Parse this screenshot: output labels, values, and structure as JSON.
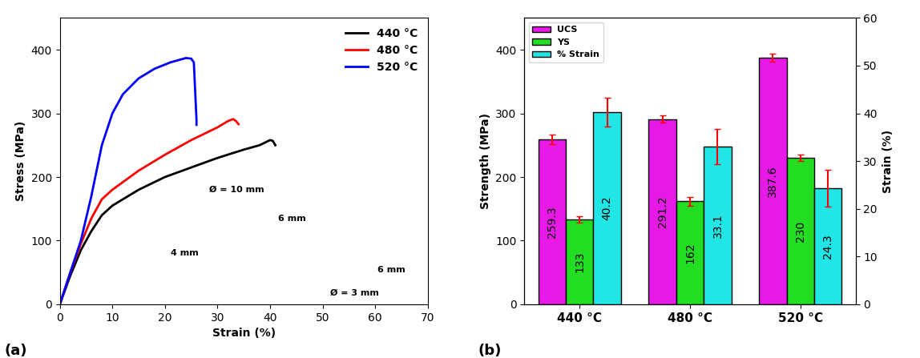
{
  "chart_data": [
    {
      "type": "line",
      "title": "(a)",
      "x_label": "Strain (%)",
      "y_label": "Stress (MPa)",
      "xlim": [
        0,
        70
      ],
      "xticks": [
        0,
        10,
        20,
        30,
        40,
        50,
        60,
        70
      ],
      "ylim": [
        0,
        450
      ],
      "yticks": [
        0,
        100,
        200,
        300,
        400
      ],
      "legend": "upper right",
      "annotations": [
        "Ø = 10 mm",
        "6 mm",
        "4 mm",
        "6 mm",
        "Ø = 3 mm"
      ],
      "series": [
        {
          "name": "440 °C",
          "color": "#000000",
          "x": [
            0,
            2,
            4,
            6,
            8,
            10,
            15,
            20,
            25,
            30,
            35,
            38,
            40,
            40.5,
            41
          ],
          "values": [
            0,
            45,
            85,
            115,
            140,
            155,
            180,
            200,
            215,
            230,
            243,
            250,
            258,
            257,
            250
          ]
        },
        {
          "name": "480 °C",
          "color": "#ff0000",
          "x": [
            0,
            2,
            4,
            6,
            8,
            10,
            15,
            20,
            25,
            30,
            32,
            33,
            33.5,
            34
          ],
          "values": [
            0,
            50,
            95,
            135,
            165,
            180,
            210,
            235,
            258,
            278,
            288,
            291,
            288,
            283
          ]
        },
        {
          "name": "520 °C",
          "color": "#0000ff",
          "x": [
            0,
            2,
            4,
            6,
            8,
            10,
            12,
            15,
            18,
            21,
            24,
            25,
            25.5,
            26,
            26
          ],
          "values": [
            0,
            50,
            100,
            170,
            250,
            300,
            330,
            355,
            370,
            380,
            387,
            386,
            380,
            290,
            282
          ]
        }
      ]
    },
    {
      "type": "bar",
      "title": "(b)",
      "y_label": "Strength (MPa)",
      "y2_label": "Strain (%)",
      "categories": [
        "440 °C",
        "480 °C",
        "520 °C"
      ],
      "ylim": [
        0,
        450
      ],
      "yticks": [
        0,
        100,
        200,
        300,
        400
      ],
      "y2lim": [
        0,
        60
      ],
      "y2ticks": [
        0,
        10,
        20,
        30,
        40,
        50,
        60
      ],
      "legend": "upper left",
      "data_labels": true,
      "series": [
        {
          "name": "UCS",
          "color": "#e619e6",
          "values": [
            259.3,
            291.2,
            387.6
          ],
          "errors": [
            8,
            6,
            6
          ]
        },
        {
          "name": "YS",
          "color": "#22dd22",
          "values": [
            133,
            162,
            230
          ],
          "errors": [
            5,
            7,
            5
          ]
        },
        {
          "name": "% Strain",
          "color": "#22e6e6",
          "axis": "y2",
          "values": [
            40.2,
            33.1,
            24.3
          ],
          "errors": [
            3.0,
            3.7,
            3.8
          ]
        }
      ]
    }
  ]
}
